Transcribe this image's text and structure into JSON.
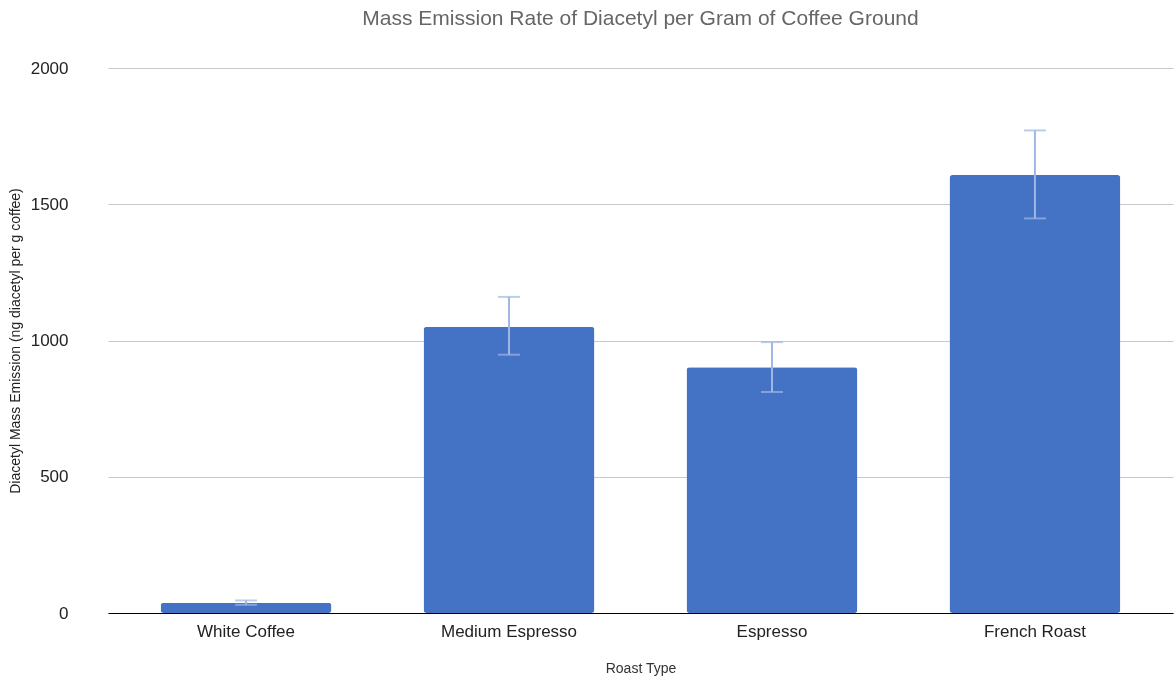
{
  "chart_data": {
    "type": "bar",
    "title": "Mass Emission Rate of Diacetyl per Gram of Coffee Ground",
    "xlabel": "Roast Type",
    "ylabel": "Diacetyl Mass Emission (ng diacetyl per g coffee)",
    "categories": [
      "White Coffee",
      "Medium Espresso",
      "Espresso",
      "French Roast"
    ],
    "values": [
      38,
      1050,
      902,
      1607
    ],
    "errors": [
      [
        30,
        46
      ],
      [
        948,
        1160
      ],
      [
        811,
        994
      ],
      [
        1448,
        1771
      ]
    ],
    "color": "#4472c4",
    "ylim": [
      0,
      2000
    ],
    "yticks": [
      0,
      500,
      1000,
      1500,
      2000
    ],
    "grid": "y"
  }
}
